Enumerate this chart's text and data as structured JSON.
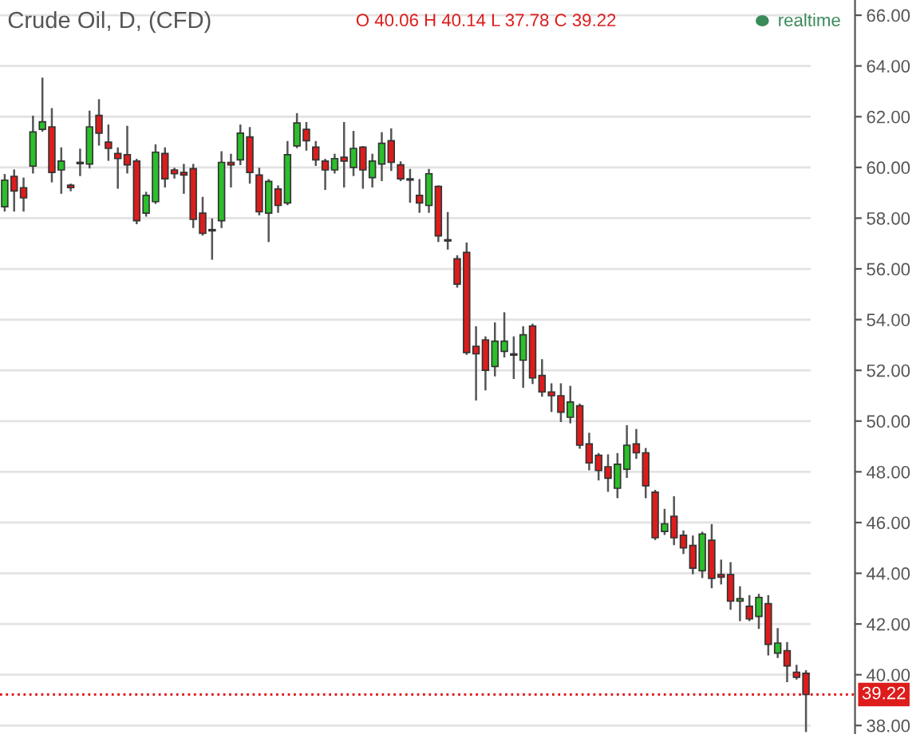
{
  "chart_data": {
    "type": "candlestick",
    "title": "Crude Oil, D, (CFD)",
    "annotations": [
      "O 40.06 H 40.14 L 37.78 C 39.22",
      "realtime"
    ],
    "categories": [
      null,
      null,
      null,
      null,
      null,
      null,
      null,
      null,
      null,
      null,
      null,
      null,
      null,
      null,
      null,
      null,
      null,
      null,
      null,
      null,
      null,
      null,
      null,
      null,
      null,
      null,
      null,
      null,
      null,
      null,
      null,
      null,
      null,
      null,
      null,
      null,
      null,
      null,
      null,
      null,
      null,
      null,
      null,
      null,
      null,
      null,
      null,
      null,
      null,
      null,
      null,
      null,
      null,
      null,
      null,
      null,
      null,
      null,
      null,
      null,
      null,
      null,
      null,
      null,
      null,
      null,
      null,
      null,
      null,
      null,
      null,
      null,
      null,
      null,
      null,
      null,
      null,
      null,
      null,
      null,
      null,
      null,
      null,
      null,
      null,
      null
    ],
    "ohlc": [
      [
        58.45,
        59.7,
        58.3,
        59.5
      ],
      [
        59.65,
        59.88,
        58.3,
        59.07
      ],
      [
        59.2,
        59.56,
        58.3,
        58.8
      ],
      [
        60.05,
        62.0,
        59.8,
        61.4
      ],
      [
        61.5,
        63.5,
        61.45,
        61.8
      ],
      [
        61.6,
        62.3,
        59.45,
        59.8
      ],
      [
        59.9,
        60.75,
        59.0,
        60.25
      ],
      [
        59.3,
        59.32,
        59.1,
        59.2
      ],
      [
        60.15,
        60.7,
        59.7,
        60.2
      ],
      [
        60.13,
        62.2,
        60.0,
        61.6
      ],
      [
        62.05,
        62.65,
        60.9,
        61.35
      ],
      [
        61.0,
        61.65,
        60.3,
        60.75
      ],
      [
        60.55,
        60.75,
        59.2,
        60.35
      ],
      [
        60.5,
        61.6,
        59.8,
        60.1
      ],
      [
        60.25,
        60.3,
        57.8,
        57.9
      ],
      [
        58.2,
        59.0,
        58.1,
        58.9
      ],
      [
        58.65,
        60.87,
        58.6,
        60.6
      ],
      [
        60.55,
        60.75,
        59.25,
        59.55
      ],
      [
        59.9,
        59.95,
        59.6,
        59.75
      ],
      [
        59.8,
        60.1,
        59.0,
        59.7
      ],
      [
        59.95,
        60.1,
        57.65,
        57.95
      ],
      [
        58.2,
        58.8,
        57.35,
        57.4
      ],
      [
        57.5,
        57.95,
        56.4,
        57.55
      ],
      [
        57.9,
        60.6,
        57.65,
        60.2
      ],
      [
        60.2,
        60.5,
        59.25,
        60.1
      ],
      [
        60.3,
        61.65,
        60.13,
        61.35
      ],
      [
        61.2,
        61.55,
        59.4,
        59.8
      ],
      [
        59.7,
        59.95,
        58.15,
        58.25
      ],
      [
        58.2,
        59.5,
        57.1,
        59.45
      ],
      [
        59.15,
        59.25,
        58.25,
        58.5
      ],
      [
        58.6,
        61.0,
        58.55,
        60.5
      ],
      [
        60.85,
        62.1,
        60.8,
        61.75
      ],
      [
        61.5,
        61.75,
        60.7,
        61.05
      ],
      [
        60.8,
        61.0,
        60.1,
        60.3
      ],
      [
        60.25,
        60.3,
        59.15,
        59.9
      ],
      [
        59.9,
        60.5,
        59.8,
        60.35
      ],
      [
        60.4,
        61.75,
        59.25,
        60.25
      ],
      [
        60.0,
        61.4,
        59.7,
        60.75
      ],
      [
        60.8,
        60.8,
        59.2,
        59.9
      ],
      [
        59.6,
        60.5,
        59.25,
        60.25
      ],
      [
        60.13,
        61.35,
        59.5,
        60.95
      ],
      [
        61.05,
        61.5,
        59.9,
        60.2
      ],
      [
        60.1,
        60.2,
        59.5,
        59.55
      ],
      [
        59.55,
        59.9,
        58.65,
        59.5
      ],
      [
        58.9,
        59.5,
        58.25,
        58.6
      ],
      [
        58.5,
        59.9,
        58.25,
        59.75
      ],
      [
        59.25,
        59.25,
        57.1,
        57.3
      ],
      [
        57.1,
        58.2,
        56.8,
        57.15
      ],
      [
        56.4,
        56.5,
        55.3,
        55.4
      ],
      [
        56.65,
        57.0,
        52.65,
        52.7
      ],
      [
        52.95,
        53.7,
        50.85,
        52.65
      ],
      [
        53.2,
        53.3,
        51.25,
        52.0
      ],
      [
        52.15,
        53.85,
        51.8,
        53.15
      ],
      [
        52.75,
        54.25,
        52.55,
        53.15
      ],
      [
        52.6,
        53.3,
        51.7,
        52.65
      ],
      [
        52.4,
        53.7,
        51.35,
        53.4
      ],
      [
        53.75,
        53.8,
        51.5,
        51.7
      ],
      [
        51.8,
        52.4,
        51.0,
        51.15
      ],
      [
        51.15,
        51.45,
        50.4,
        51.0
      ],
      [
        51.0,
        51.45,
        50.0,
        50.35
      ],
      [
        50.15,
        51.35,
        49.95,
        50.75
      ],
      [
        50.6,
        50.65,
        48.95,
        49.05
      ],
      [
        49.1,
        49.5,
        48.1,
        48.35
      ],
      [
        48.65,
        48.7,
        47.7,
        48.05
      ],
      [
        48.2,
        48.65,
        47.25,
        47.75
      ],
      [
        47.35,
        48.7,
        47.0,
        48.3
      ],
      [
        48.1,
        49.8,
        47.8,
        49.05
      ],
      [
        49.1,
        49.65,
        48.55,
        48.75
      ],
      [
        48.75,
        48.9,
        47.0,
        47.45
      ],
      [
        47.2,
        47.25,
        45.35,
        45.4
      ],
      [
        45.65,
        46.5,
        45.55,
        45.95
      ],
      [
        46.25,
        47.0,
        45.15,
        45.4
      ],
      [
        45.5,
        45.65,
        44.8,
        45.0
      ],
      [
        45.1,
        45.45,
        44.0,
        44.2
      ],
      [
        44.1,
        45.6,
        43.85,
        45.55
      ],
      [
        45.3,
        45.9,
        43.45,
        43.8
      ],
      [
        43.95,
        44.5,
        43.6,
        43.85
      ],
      [
        43.95,
        44.4,
        42.6,
        42.9
      ],
      [
        42.9,
        43.45,
        42.15,
        43.0
      ],
      [
        42.7,
        43.1,
        42.15,
        42.2
      ],
      [
        42.3,
        43.15,
        41.85,
        43.05
      ],
      [
        42.8,
        43.1,
        40.8,
        41.2
      ],
      [
        40.85,
        41.8,
        40.7,
        41.25
      ],
      [
        40.95,
        41.25,
        39.75,
        40.35
      ],
      [
        40.1,
        40.35,
        39.85,
        39.9
      ],
      [
        40.06,
        40.14,
        37.78,
        39.22
      ]
    ],
    "colors": [
      "#2bbf2b",
      "#dd1c1c",
      "#dd1c1c",
      "#2bbf2b",
      "#2bbf2b",
      "#dd1c1c",
      "#2bbf2b",
      "#dd1c1c",
      "#2bbf2b",
      "#2bbf2b",
      "#dd1c1c",
      "#dd1c1c",
      "#dd1c1c",
      "#dd1c1c",
      "#dd1c1c",
      "#2bbf2b",
      "#2bbf2b",
      "#dd1c1c",
      "#dd1c1c",
      "#dd1c1c",
      "#dd1c1c",
      "#dd1c1c",
      "#2bbf2b",
      "#2bbf2b",
      "#dd1c1c",
      "#2bbf2b",
      "#dd1c1c",
      "#dd1c1c",
      "#2bbf2b",
      "#dd1c1c",
      "#2bbf2b",
      "#2bbf2b",
      "#dd1c1c",
      "#dd1c1c",
      "#dd1c1c",
      "#2bbf2b",
      "#dd1c1c",
      "#2bbf2b",
      "#dd1c1c",
      "#2bbf2b",
      "#2bbf2b",
      "#dd1c1c",
      "#dd1c1c",
      "#dd1c1c",
      "#dd1c1c",
      "#2bbf2b",
      "#dd1c1c",
      "#2bbf2b",
      "#dd1c1c",
      "#dd1c1c",
      "#dd1c1c",
      "#dd1c1c",
      "#2bbf2b",
      "#2bbf2b",
      "#2bbf2b",
      "#2bbf2b",
      "#dd1c1c",
      "#dd1c1c",
      "#dd1c1c",
      "#dd1c1c",
      "#2bbf2b",
      "#dd1c1c",
      "#dd1c1c",
      "#dd1c1c",
      "#dd1c1c",
      "#2bbf2b",
      "#2bbf2b",
      "#dd1c1c",
      "#dd1c1c",
      "#dd1c1c",
      "#2bbf2b",
      "#dd1c1c",
      "#dd1c1c",
      "#dd1c1c",
      "#2bbf2b",
      "#dd1c1c",
      "#dd1c1c",
      "#dd1c1c",
      "#2bbf2b",
      "#dd1c1c",
      "#2bbf2b",
      "#dd1c1c",
      "#2bbf2b",
      "#dd1c1c",
      "#dd1c1c",
      "#dd1c1c"
    ],
    "ylim": [
      37.7,
      66.6
    ],
    "yticks": [
      {
        "value": 38,
        "label": "38.00"
      },
      {
        "value": 40,
        "label": "40.00"
      },
      {
        "value": 42,
        "label": "42.00"
      },
      {
        "value": 44,
        "label": "44.00"
      },
      {
        "value": 46,
        "label": "46.00"
      },
      {
        "value": 48,
        "label": "48.00"
      },
      {
        "value": 50,
        "label": "50.00"
      },
      {
        "value": 52,
        "label": "52.00"
      },
      {
        "value": 54,
        "label": "54.00"
      },
      {
        "value": 56,
        "label": "56.00"
      },
      {
        "value": 58,
        "label": "58.00"
      },
      {
        "value": 60,
        "label": "60.00"
      },
      {
        "value": 62,
        "label": "62.00"
      },
      {
        "value": 64,
        "label": "64.00"
      },
      {
        "value": 66,
        "label": "66.00"
      }
    ],
    "tick_labels": "y",
    "grid": "y",
    "ref_lines": [
      {
        "axis": "y",
        "value": 39.22,
        "label": "39.22",
        "color": "#dd1c1c",
        "line_style": "dotted"
      }
    ]
  }
}
